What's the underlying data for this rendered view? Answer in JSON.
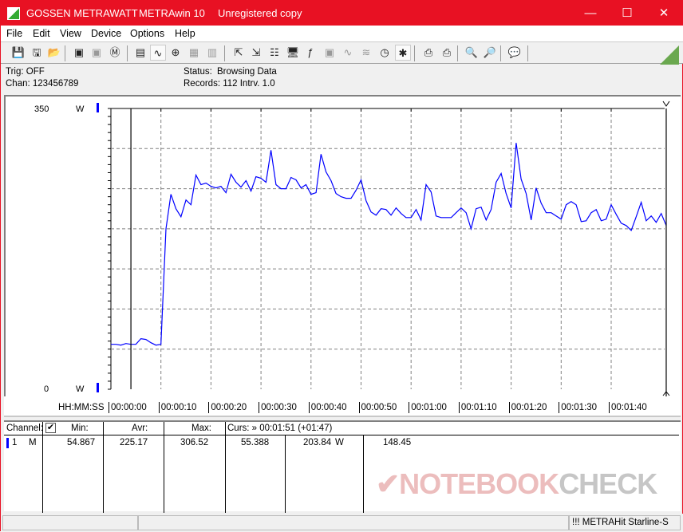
{
  "window": {
    "brand": "GOSSEN METRAWATT",
    "app": "METRAwin 10",
    "license": "Unregistered copy",
    "accent": "#e81123"
  },
  "menu": [
    "File",
    "Edit",
    "View",
    "Device",
    "Options",
    "Help"
  ],
  "toolbar": [
    "save-icon",
    "save-as-icon",
    "open-icon",
    "device-read-icon",
    "device-read-disabled-icon",
    "memory-read-icon",
    "display-icon",
    "chart-view-icon",
    "cursor-crosshair-icon",
    "table-view-icon",
    "histogram-icon",
    "export-icon",
    "import-icon",
    "config-icon",
    "monitor-icon",
    "function-icon",
    "device-icon",
    "wave-icon",
    "multi-wave-icon",
    "clock-icon",
    "bug-icon",
    "print-icon",
    "print-setup-icon",
    "zoom-wave-icon",
    "zoom-sine-icon",
    "comment-icon"
  ],
  "info": {
    "trig": "Trig: OFF",
    "chan": "Chan:  123456789",
    "status_label": "Status:",
    "status_value": "Browsing Data",
    "records": "Records: 112   Intrv. 1.0"
  },
  "chart_data": {
    "type": "line",
    "ylim": [
      0,
      350
    ],
    "y_top_label": "350",
    "y_bottom_label": "0",
    "unit": "W",
    "xlabel": "HH:MM:SS",
    "x_ticks": [
      "00:00:00",
      "00:00:10",
      "00:00:20",
      "00:00:30",
      "00:00:40",
      "00:00:50",
      "00:01:00",
      "00:01:10",
      "00:01:20",
      "00:01:30",
      "00:01:40"
    ],
    "interval_s": 1,
    "grid": true,
    "line_color": "#0000ff",
    "cursor_a_s": 4,
    "cursor_b_s": 111,
    "values": [
      56,
      56,
      55,
      57,
      56,
      56,
      63,
      62,
      58,
      55,
      56,
      200,
      243,
      225,
      215,
      236,
      230,
      267,
      255,
      257,
      253,
      251,
      253,
      245,
      268,
      258,
      252,
      260,
      247,
      265,
      263,
      258,
      298,
      255,
      250,
      250,
      264,
      261,
      251,
      255,
      243,
      245,
      293,
      271,
      260,
      244,
      240,
      238,
      238,
      248,
      261,
      235,
      221,
      217,
      225,
      224,
      217,
      226,
      219,
      214,
      214,
      224,
      211,
      255,
      246,
      216,
      214,
      214,
      214,
      220,
      226,
      220,
      200,
      225,
      227,
      211,
      224,
      258,
      269,
      244,
      226,
      307,
      262,
      244,
      211,
      251,
      232,
      220,
      220,
      216,
      212,
      230,
      234,
      230,
      209,
      210,
      220,
      224,
      210,
      212,
      230,
      218,
      207,
      204,
      198,
      215,
      233,
      210,
      216,
      208,
      219,
      204
    ]
  },
  "table": {
    "channel_label": "Channel:",
    "min_label": "Min:",
    "avr_label": "Avr:",
    "max_label": "Max:",
    "curs_label": "Curs: » 00:01:51 (+01:47)",
    "row": {
      "num": "1",
      "type": "M",
      "min": "54.867",
      "avr": "225.17",
      "max": "306.52",
      "curs_a": "55.388",
      "curs_b": "203.84",
      "unit": "W",
      "diff": "148.45"
    }
  },
  "statusbar": {
    "device": "!!! METRAHit Starline-S"
  },
  "watermark": {
    "a": "NOTEBOOK",
    "b": "CHECK"
  }
}
